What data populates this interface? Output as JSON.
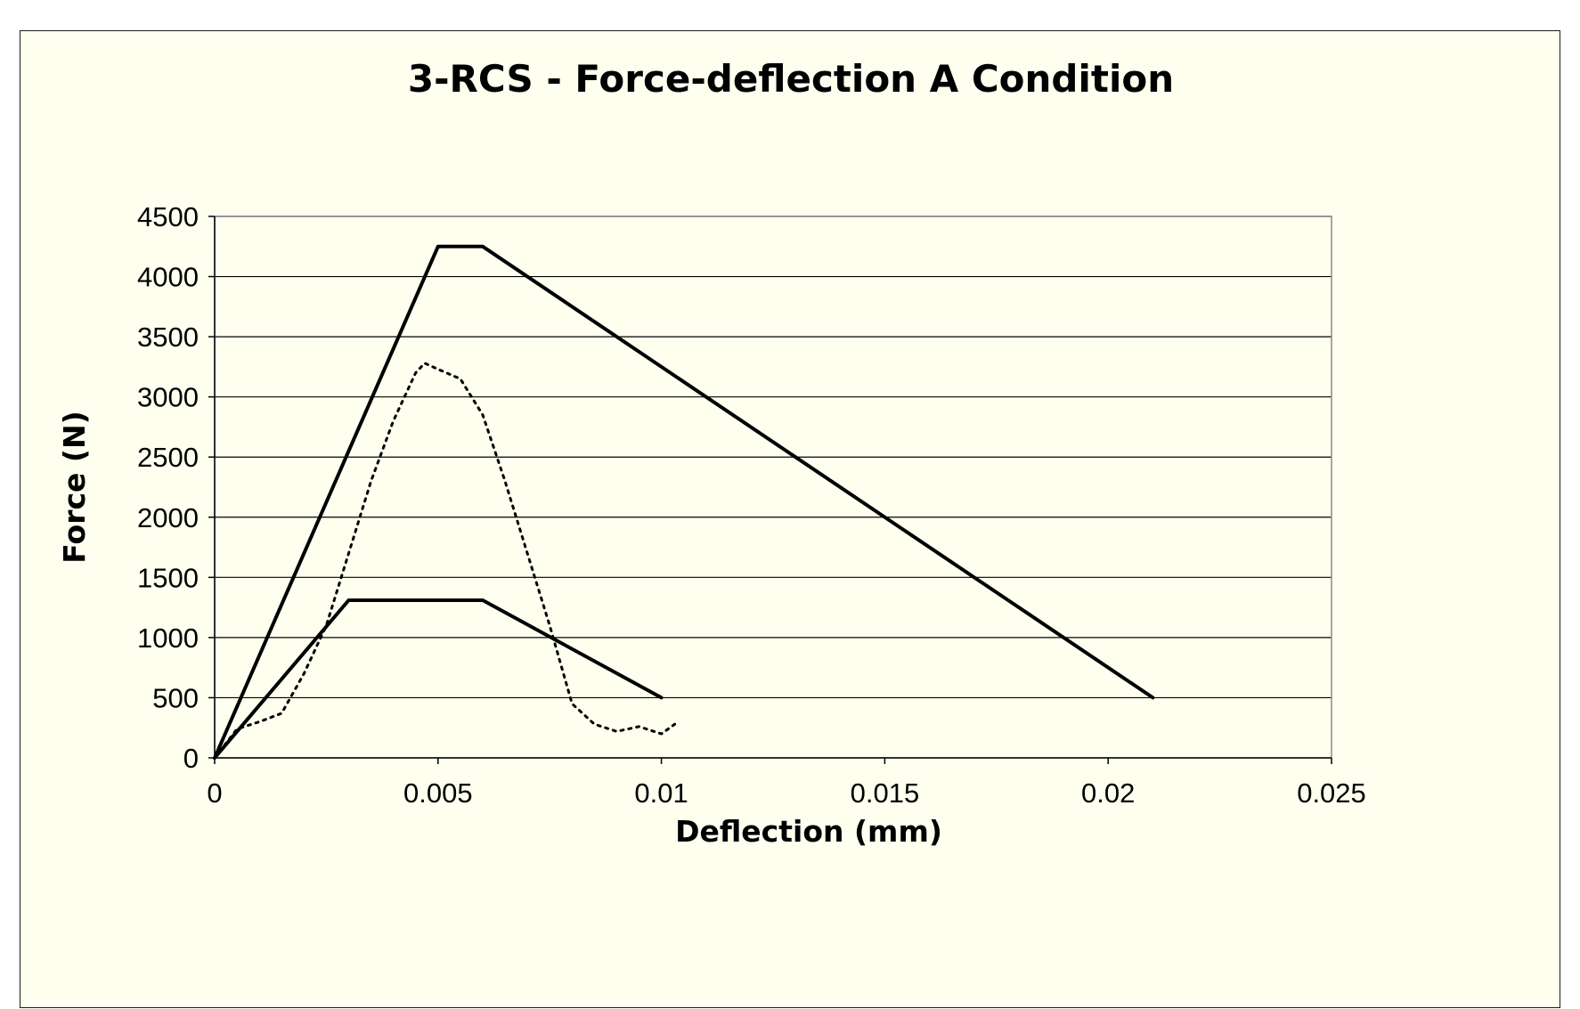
{
  "chart_data": {
    "type": "scatter",
    "title": "3-RCS - Force-deflection A Condition",
    "xlabel": "Deflection (mm)",
    "ylabel": "Force (N)",
    "xlim": [
      0,
      0.025
    ],
    "ylim": [
      0,
      4500
    ],
    "x_ticks": [
      "0",
      "0.005",
      "0.01",
      "0.015",
      "0.02",
      "0.025"
    ],
    "y_ticks": [
      "0",
      "500",
      "1000",
      "1500",
      "2000",
      "2500",
      "3000",
      "3500",
      "4000",
      "4500"
    ],
    "x_tick_values": [
      0,
      0.005,
      0.01,
      0.015,
      0.02,
      0.025
    ],
    "y_tick_values": [
      0,
      500,
      1000,
      1500,
      2000,
      2500,
      3000,
      3500,
      4000,
      4500
    ],
    "grid": "horizontal",
    "legend": "none",
    "series": [
      {
        "style": "solid",
        "color": "#000000",
        "points": [
          [
            0,
            0
          ],
          [
            0.005,
            4250
          ],
          [
            0.006,
            4250
          ],
          [
            0.021,
            500
          ]
        ]
      },
      {
        "style": "solid",
        "color": "#000000",
        "points": [
          [
            0,
            0
          ],
          [
            0.003,
            1310
          ],
          [
            0.006,
            1310
          ],
          [
            0.01,
            500
          ]
        ]
      },
      {
        "style": "dotted",
        "color": "#000000",
        "points": [
          [
            0,
            0
          ],
          [
            0.0005,
            240
          ],
          [
            0.001,
            300
          ],
          [
            0.0015,
            370
          ],
          [
            0.002,
            700
          ],
          [
            0.0025,
            1100
          ],
          [
            0.003,
            1700
          ],
          [
            0.0035,
            2300
          ],
          [
            0.004,
            2800
          ],
          [
            0.0045,
            3200
          ],
          [
            0.0047,
            3280
          ],
          [
            0.005,
            3230
          ],
          [
            0.0055,
            3150
          ],
          [
            0.006,
            2850
          ],
          [
            0.0065,
            2300
          ],
          [
            0.007,
            1700
          ],
          [
            0.0075,
            1100
          ],
          [
            0.008,
            450
          ],
          [
            0.0085,
            280
          ],
          [
            0.009,
            220
          ],
          [
            0.0095,
            260
          ],
          [
            0.01,
            200
          ],
          [
            0.0103,
            280
          ]
        ]
      }
    ]
  }
}
